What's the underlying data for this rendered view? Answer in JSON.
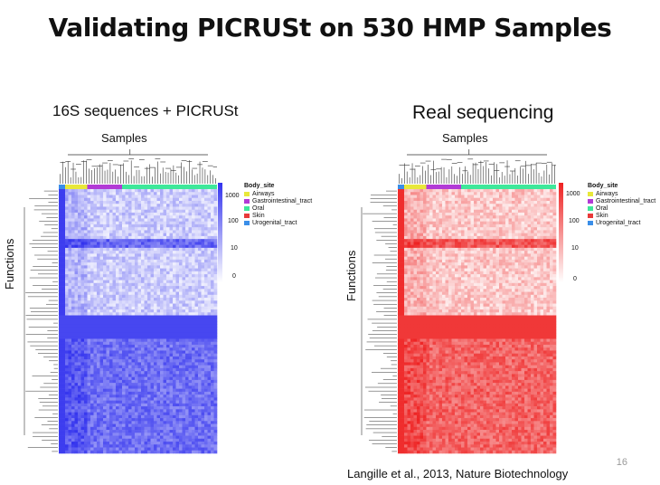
{
  "slide": {
    "title": "Validating PICRUSt on 530 HMP Samples",
    "page_number": "16",
    "citation": "Langille et al., 2013, Nature Biotechnology"
  },
  "chart_data": [
    {
      "type": "heatmap",
      "title": "16S sequences + PICRUSt",
      "xlabel": "Samples",
      "ylabel": "Functions",
      "color_scale": {
        "low": "#ffffff",
        "high": "#3333ee",
        "ticks": [
          "1000",
          "100",
          "10",
          "0"
        ]
      },
      "legend": {
        "title": "Body_site",
        "entries": [
          {
            "label": "Airways",
            "color": "#e8e83a"
          },
          {
            "label": "Gastrointestinal_tract",
            "color": "#b23ad6"
          },
          {
            "label": "Oral",
            "color": "#3ee89a"
          },
          {
            "label": "Skin",
            "color": "#e83a3a"
          },
          {
            "label": "Urogenital_tract",
            "color": "#3a8ee8"
          }
        ]
      },
      "sample_groups": [
        "Urogenital_tract",
        "Airways",
        "Gastrointestinal_tract",
        "Oral"
      ]
    },
    {
      "type": "heatmap",
      "title": "Real sequencing",
      "xlabel": "Samples",
      "ylabel": "Functions",
      "color_scale": {
        "low": "#ffffff",
        "high": "#ee2222",
        "ticks": [
          "1000",
          "100",
          "10",
          "0"
        ]
      },
      "legend": {
        "title": "Body_site",
        "entries": [
          {
            "label": "Airways",
            "color": "#e8e83a"
          },
          {
            "label": "Gastrointestinal_tract",
            "color": "#b23ad6"
          },
          {
            "label": "Oral",
            "color": "#3ee89a"
          },
          {
            "label": "Skin",
            "color": "#e83a3a"
          },
          {
            "label": "Urogenital_tract",
            "color": "#3a8ee8"
          }
        ]
      },
      "sample_groups": [
        "Urogenital_tract",
        "Airways",
        "Gastrointestinal_tract",
        "Oral"
      ]
    }
  ]
}
